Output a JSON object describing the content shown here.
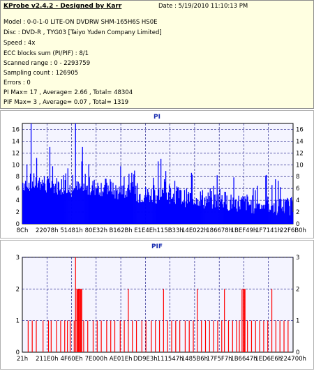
{
  "window": {
    "title": "KProbe v2.4.2 - Designed by Karr",
    "date": "Date : 5/19/2010 11:10:13 PM"
  },
  "info": {
    "lines": [
      "Model : 0-0-1-0 LITE-ON DVDRW SHM-165H6S HS0E",
      "Disc : DVD-R , TYG03 [Taiyo Yuden Company Limited]",
      "Speed : 4x",
      "ECC blocks sum (PI/PIF) : 8/1",
      "Scanned range : 0 - 2293759",
      "Sampling count : 126905",
      "Errors : 0",
      "PI Max= 17 , Average= 2.66 , Total= 48304",
      "PIF Max= 3 , Average= 0.07 , Total= 1319"
    ]
  },
  "colors": {
    "pi_bars": "#0000ff",
    "pif_bars": "#ff0000",
    "plot_bg": "#f4f4ff",
    "grid": "#00007a",
    "info_bg": "#ffffe1"
  },
  "chart_data": [
    {
      "type": "bar",
      "title": "PI",
      "y_ticks": [
        "0",
        "2",
        "4",
        "6",
        "8",
        "10",
        "12",
        "14",
        "16"
      ],
      "ylim": [
        0,
        17
      ],
      "x_tick_labels": [
        "8Ch",
        "22078h",
        "51481h",
        "80E32h",
        "B162Bh",
        "E1E4Eh",
        "115B33h",
        "14E022h",
        "186678h",
        "1BEF49h",
        "1F7141h",
        "22F6B0h"
      ],
      "segment_averages": [
        7.0,
        6.5,
        5.9,
        6.2,
        5.5,
        5.0,
        4.9,
        4.4,
        4.0,
        3.6,
        3.3,
        3.0
      ],
      "notable_peaks": [
        {
          "x_fraction": 0.03,
          "value": 17
        },
        {
          "x_fraction": 0.195,
          "value": 17
        },
        {
          "x_fraction": 0.1,
          "value": 13
        },
        {
          "x_fraction": 0.22,
          "value": 13
        },
        {
          "x_fraction": 0.51,
          "value": 11
        }
      ],
      "grid": true
    },
    {
      "type": "bar",
      "title": "PIF",
      "y_ticks": [
        "0",
        "1",
        "2",
        "3"
      ],
      "ylim": [
        0,
        3
      ],
      "x_tick_labels": [
        "21h",
        "211E0h",
        "4F60Eh",
        "7E000h",
        "AE01Eh",
        "DD9E3h",
        "111547h",
        "1485B6h",
        "17F5F7h",
        "1B6647h",
        "1ED6E6h",
        "224700h"
      ],
      "bars": [
        {
          "x": 0.02,
          "v": 1
        },
        {
          "x": 0.035,
          "v": 1
        },
        {
          "x": 0.05,
          "v": 1
        },
        {
          "x": 0.075,
          "v": 1
        },
        {
          "x": 0.095,
          "v": 1
        },
        {
          "x": 0.105,
          "v": 1
        },
        {
          "x": 0.125,
          "v": 1
        },
        {
          "x": 0.14,
          "v": 1
        },
        {
          "x": 0.155,
          "v": 1
        },
        {
          "x": 0.165,
          "v": 1
        },
        {
          "x": 0.175,
          "v": 1
        },
        {
          "x": 0.19,
          "v": 1
        },
        {
          "x": 0.195,
          "v": 3
        },
        {
          "x": 0.2,
          "v": 2
        },
        {
          "x": 0.203,
          "v": 2
        },
        {
          "x": 0.206,
          "v": 2
        },
        {
          "x": 0.209,
          "v": 2
        },
        {
          "x": 0.212,
          "v": 2
        },
        {
          "x": 0.215,
          "v": 2
        },
        {
          "x": 0.218,
          "v": 2
        },
        {
          "x": 0.225,
          "v": 1
        },
        {
          "x": 0.24,
          "v": 1
        },
        {
          "x": 0.26,
          "v": 1
        },
        {
          "x": 0.275,
          "v": 1
        },
        {
          "x": 0.29,
          "v": 1
        },
        {
          "x": 0.31,
          "v": 1
        },
        {
          "x": 0.325,
          "v": 1
        },
        {
          "x": 0.34,
          "v": 1
        },
        {
          "x": 0.36,
          "v": 1
        },
        {
          "x": 0.375,
          "v": 1
        },
        {
          "x": 0.39,
          "v": 2
        },
        {
          "x": 0.405,
          "v": 1
        },
        {
          "x": 0.42,
          "v": 1
        },
        {
          "x": 0.44,
          "v": 1
        },
        {
          "x": 0.455,
          "v": 1
        },
        {
          "x": 0.475,
          "v": 1
        },
        {
          "x": 0.49,
          "v": 1
        },
        {
          "x": 0.505,
          "v": 1
        },
        {
          "x": 0.52,
          "v": 2
        },
        {
          "x": 0.535,
          "v": 1
        },
        {
          "x": 0.55,
          "v": 1
        },
        {
          "x": 0.565,
          "v": 1
        },
        {
          "x": 0.58,
          "v": 1
        },
        {
          "x": 0.6,
          "v": 1
        },
        {
          "x": 0.615,
          "v": 1
        },
        {
          "x": 0.63,
          "v": 1
        },
        {
          "x": 0.645,
          "v": 2
        },
        {
          "x": 0.66,
          "v": 1
        },
        {
          "x": 0.675,
          "v": 1
        },
        {
          "x": 0.69,
          "v": 1
        },
        {
          "x": 0.705,
          "v": 1
        },
        {
          "x": 0.72,
          "v": 1
        },
        {
          "x": 0.735,
          "v": 1
        },
        {
          "x": 0.745,
          "v": 2
        },
        {
          "x": 0.76,
          "v": 1
        },
        {
          "x": 0.775,
          "v": 1
        },
        {
          "x": 0.79,
          "v": 1
        },
        {
          "x": 0.8,
          "v": 1
        },
        {
          "x": 0.81,
          "v": 2
        },
        {
          "x": 0.815,
          "v": 2
        },
        {
          "x": 0.818,
          "v": 2
        },
        {
          "x": 0.821,
          "v": 2
        },
        {
          "x": 0.83,
          "v": 1
        },
        {
          "x": 0.845,
          "v": 1
        },
        {
          "x": 0.86,
          "v": 1
        },
        {
          "x": 0.875,
          "v": 1
        },
        {
          "x": 0.89,
          "v": 1
        },
        {
          "x": 0.905,
          "v": 1
        },
        {
          "x": 0.92,
          "v": 2
        },
        {
          "x": 0.935,
          "v": 1
        },
        {
          "x": 0.95,
          "v": 1
        },
        {
          "x": 0.965,
          "v": 1
        },
        {
          "x": 0.98,
          "v": 1
        }
      ],
      "grid": true
    }
  ]
}
